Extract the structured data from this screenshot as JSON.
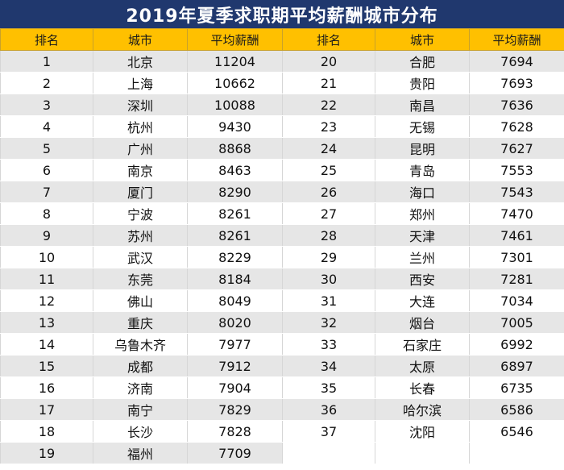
{
  "title": "2019年夏季求职期平均薪酬城市分布",
  "headers": [
    "排名",
    "城市",
    "平均薪酬",
    "排名",
    "城市",
    "平均薪酬"
  ],
  "colors": {
    "title_bg": "#20386e",
    "header_bg": "#ffc000",
    "stripe": "#e6e6e6"
  },
  "rows": [
    [
      "1",
      "北京",
      "11204",
      "20",
      "合肥",
      "7694"
    ],
    [
      "2",
      "上海",
      "10662",
      "21",
      "贵阳",
      "7693"
    ],
    [
      "3",
      "深圳",
      "10088",
      "22",
      "南昌",
      "7636"
    ],
    [
      "4",
      "杭州",
      "9430",
      "23",
      "无锡",
      "7628"
    ],
    [
      "5",
      "广州",
      "8868",
      "24",
      "昆明",
      "7627"
    ],
    [
      "6",
      "南京",
      "8463",
      "25",
      "青岛",
      "7553"
    ],
    [
      "7",
      "厦门",
      "8290",
      "26",
      "海口",
      "7543"
    ],
    [
      "8",
      "宁波",
      "8261",
      "27",
      "郑州",
      "7470"
    ],
    [
      "9",
      "苏州",
      "8261",
      "28",
      "天津",
      "7461"
    ],
    [
      "10",
      "武汉",
      "8229",
      "29",
      "兰州",
      "7301"
    ],
    [
      "11",
      "东莞",
      "8184",
      "30",
      "西安",
      "7281"
    ],
    [
      "12",
      "佛山",
      "8049",
      "31",
      "大连",
      "7034"
    ],
    [
      "13",
      "重庆",
      "8020",
      "32",
      "烟台",
      "7005"
    ],
    [
      "14",
      "乌鲁木齐",
      "7977",
      "33",
      "石家庄",
      "6992"
    ],
    [
      "15",
      "成都",
      "7912",
      "34",
      "太原",
      "6897"
    ],
    [
      "16",
      "济南",
      "7904",
      "35",
      "长春",
      "6735"
    ],
    [
      "17",
      "南宁",
      "7829",
      "36",
      "哈尔滨",
      "6586"
    ],
    [
      "18",
      "长沙",
      "7828",
      "37",
      "沈阳",
      "6546"
    ],
    [
      "19",
      "福州",
      "7709",
      "",
      "",
      ""
    ]
  ]
}
